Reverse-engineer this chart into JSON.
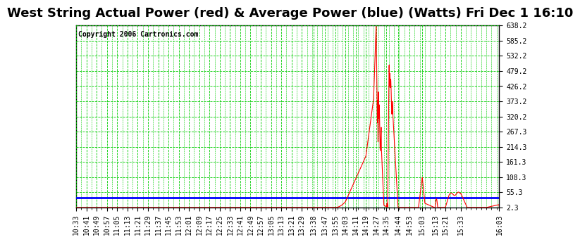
{
  "title": "West String Actual Power (red) & Average Power (blue) (Watts) Fri Dec 1 16:10",
  "copyright": "Copyright 2006 Cartronics.com",
  "background_color": "#ffffff",
  "plot_bg_color": "#ffffff",
  "grid_color": "#00cc00",
  "grid_style": "--",
  "actual_color": "#ff0000",
  "average_color": "#0000ff",
  "average_value": 37.0,
  "ylim": [
    2.3,
    638.2
  ],
  "yticks": [
    2.3,
    55.3,
    108.3,
    161.3,
    214.3,
    267.3,
    320.2,
    373.2,
    426.2,
    479.2,
    532.2,
    585.2,
    638.2
  ],
  "x_labels": [
    "10:33",
    "10:41",
    "10:49",
    "10:57",
    "11:05",
    "11:13",
    "11:21",
    "11:29",
    "11:37",
    "11:45",
    "11:53",
    "12:01",
    "12:09",
    "12:17",
    "12:25",
    "12:33",
    "12:41",
    "12:49",
    "12:57",
    "13:05",
    "13:13",
    "13:21",
    "13:29",
    "13:38",
    "13:47",
    "13:55",
    "14:03",
    "14:11",
    "14:19",
    "14:27",
    "14:35",
    "14:44",
    "14:53",
    "15:03",
    "15:13",
    "15:21",
    "15:33",
    "16:03"
  ],
  "title_fontsize": 13,
  "copyright_fontsize": 7,
  "tick_fontsize": 7
}
